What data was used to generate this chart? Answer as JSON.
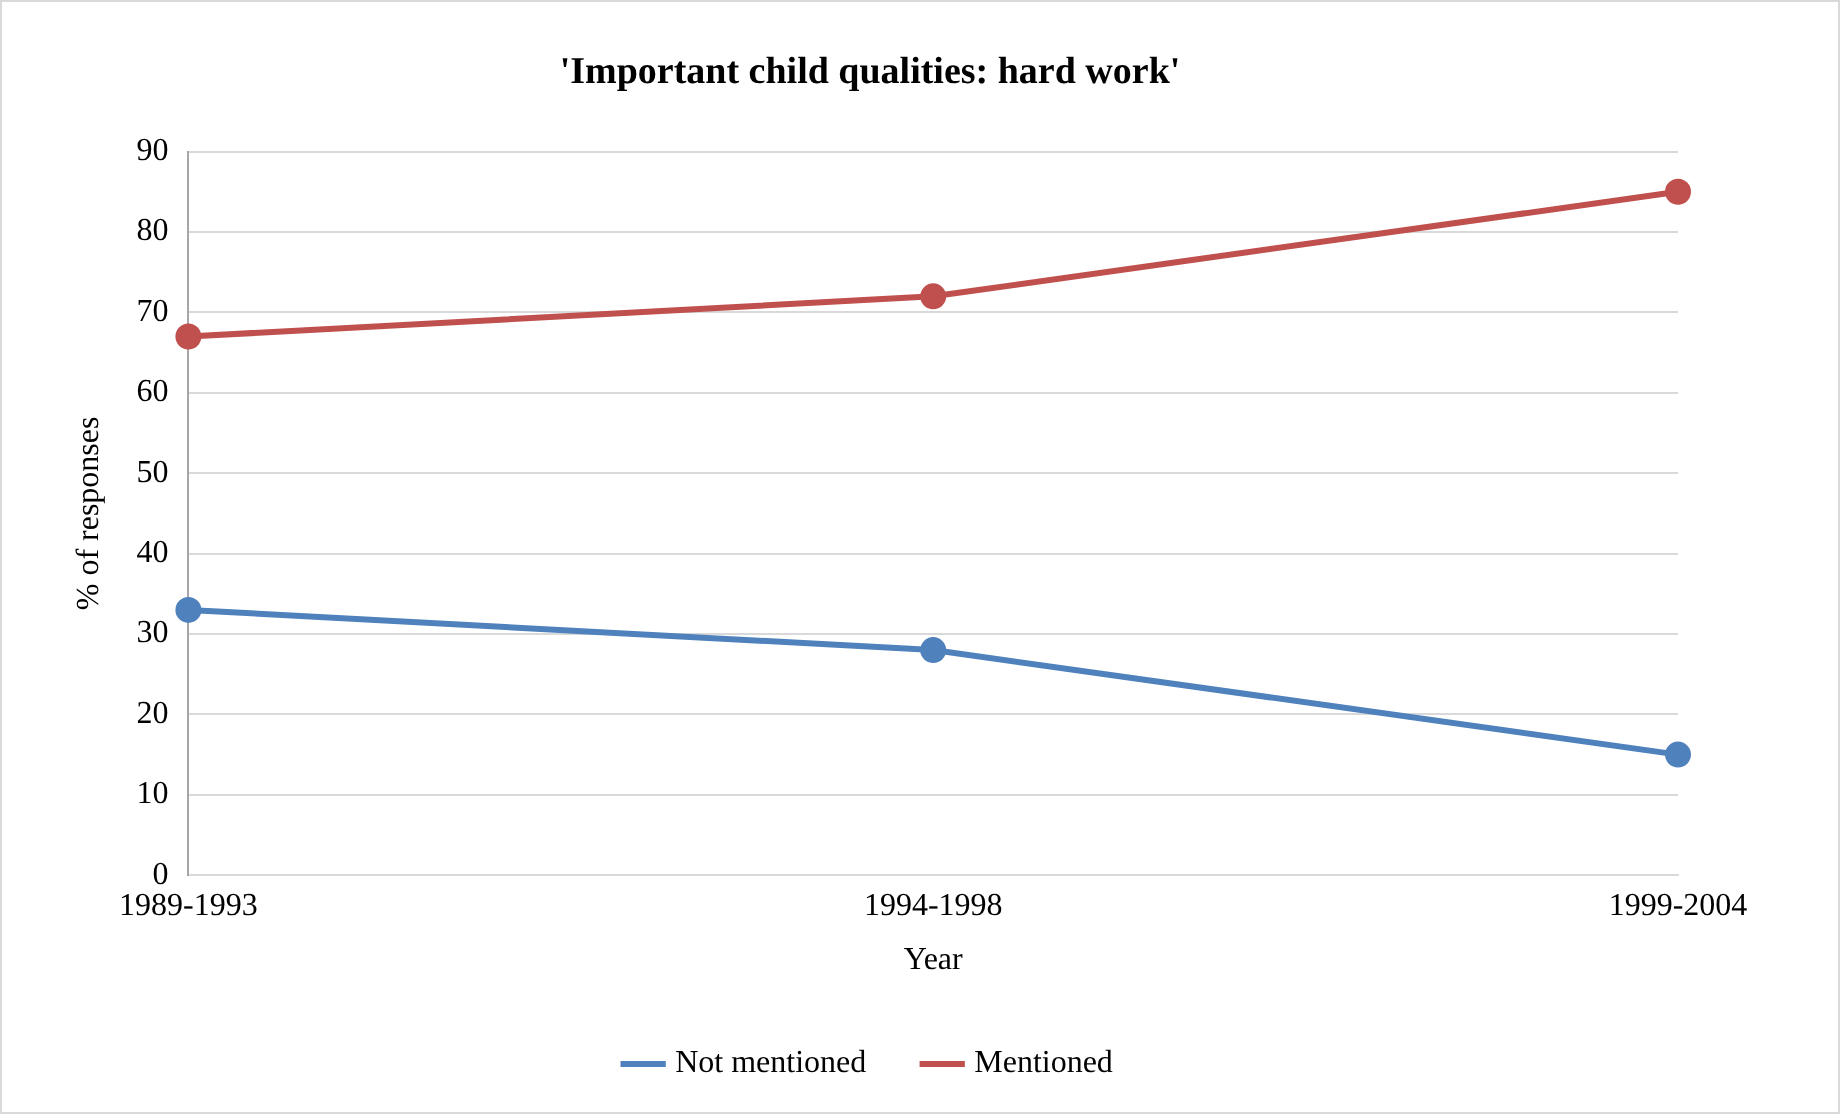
{
  "chart_data": {
    "type": "line",
    "title": "'Important child qualities: hard work'",
    "xlabel": "Year",
    "ylabel": "% of responses",
    "categories": [
      "1989-1993",
      "1994-1998",
      "1999-2004"
    ],
    "series": [
      {
        "name": "Not mentioned",
        "color": "#4f81bd",
        "values": [
          33,
          28,
          15
        ]
      },
      {
        "name": "Mentioned",
        "color": "#c0504d",
        "values": [
          67,
          72,
          85
        ]
      }
    ],
    "ylim": [
      0,
      90
    ],
    "yticks": [
      0,
      10,
      20,
      30,
      40,
      50,
      60,
      70,
      80,
      90
    ],
    "grid": "y",
    "legend": "bottom",
    "marker": "circle",
    "line_style": "solid"
  }
}
